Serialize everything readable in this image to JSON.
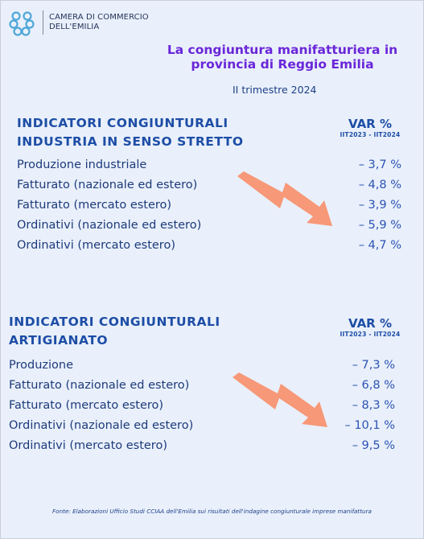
{
  "header": {
    "org_line1": "CAMERA DI COMMERCIO",
    "org_line2": "DELL'EMILIA",
    "title_line1": "La congiuntura manifatturiera in",
    "title_line2": "provincia di Reggio Emilia",
    "period": "II trimestre 2024"
  },
  "industria": {
    "title_line1": "INDICATORI CONGIUNTURALI",
    "title_line2": "INDUSTRIA IN SENSO STRETTO",
    "var_label": "VAR %",
    "var_period": "IIT2023 - IIT2024",
    "rows": [
      {
        "label": "Produzione industriale",
        "value": "– 3,7 %"
      },
      {
        "label": "Fatturato (nazionale ed estero)",
        "value": "– 4,8 %"
      },
      {
        "label": "Fatturato (mercato estero)",
        "value": "– 3,9 %"
      },
      {
        "label": "Ordinativi (nazionale ed estero)",
        "value": "– 5,9 %"
      },
      {
        "label": "Ordinativi (mercato estero)",
        "value": "– 4,7 %"
      }
    ]
  },
  "artigianato": {
    "title_line1": "INDICATORI CONGIUNTURALI",
    "title_line2": "ARTIGIANATO",
    "var_label": "VAR %",
    "var_period": "IIT2023 - IIT2024",
    "rows": [
      {
        "label": "Produzione",
        "value": "– 7,3 %"
      },
      {
        "label": "Fatturato (nazionale ed estero)",
        "value": "– 6,8 %"
      },
      {
        "label": "Fatturato (mercato estero)",
        "value": "– 8,3 %"
      },
      {
        "label": "Ordinativi (nazionale ed estero)",
        "value": "– 10,1 %"
      },
      {
        "label": "Ordinativi (mercato estero)",
        "value": "– 9,5 %"
      }
    ]
  },
  "footnote": "Fonte: Elaborazioni Ufficio Studi CCIAA dell'Emilia sui risultati dell'indagine congiunturale imprese manifattura",
  "colors": {
    "background": "#e9f0fb",
    "title_purple": "#6a26d9",
    "heading_blue": "#1d4da6",
    "arrow_salmon": "#f79878"
  },
  "icons": [
    "logo-icon",
    "down-arrow-icon"
  ]
}
